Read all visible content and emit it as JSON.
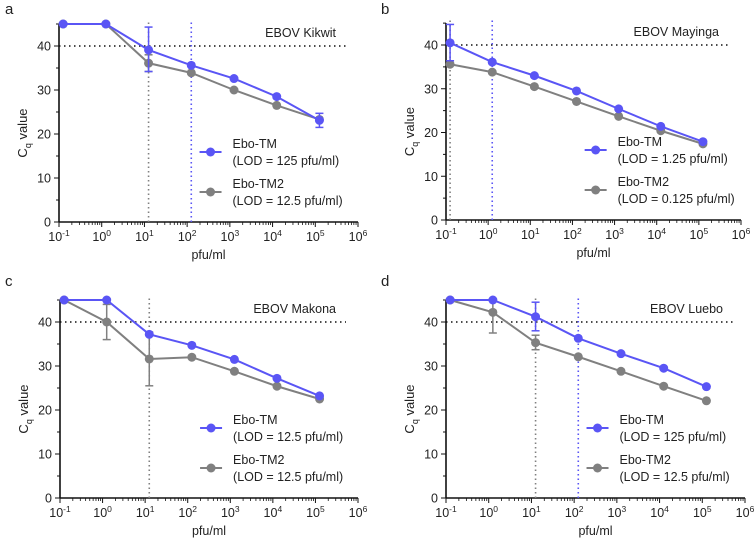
{
  "colors": {
    "tm": "#5a55f5",
    "tm2": "#808080",
    "axis": "#111111"
  },
  "chart_data": [
    {
      "type": "line",
      "panel_label": "a",
      "title": "EBOV Kikwit",
      "xlabel": "pfu/ml",
      "ylabel": "C",
      "ylabel_sub": "q",
      "ylabel_rest": " value",
      "xscale": "log",
      "xlim": [
        0.1,
        1000000
      ],
      "ylim": [
        0,
        45
      ],
      "xticks": [
        "10",
        "10",
        "10",
        "10",
        "10",
        "10",
        "10",
        "10"
      ],
      "xtick_exps": [
        "-1",
        "0",
        "1",
        "2",
        "3",
        "4",
        "5",
        "6"
      ],
      "yticks": [
        "0",
        "10",
        "20",
        "30",
        "40"
      ],
      "threshold": 40,
      "x": [
        0.125,
        1.25,
        12.5,
        125,
        1250,
        12500,
        125000
      ],
      "series": [
        {
          "name": "Ebo-TM",
          "lod_label": "(LOD = 125 pfu/ml)",
          "lod": 125,
          "values": [
            45,
            45,
            39.1,
            35.6,
            32.6,
            28.5,
            23.1
          ],
          "errors": [
            null,
            null,
            [
              34.2,
              44.3
            ],
            null,
            null,
            null,
            [
              21.5,
              24.7
            ]
          ]
        },
        {
          "name": "Ebo-TM2",
          "lod_label": "(LOD = 12.5 pfu/ml)",
          "lod": 12.5,
          "values": [
            45,
            45,
            36.1,
            33.9,
            30.0,
            26.5,
            23.3
          ],
          "errors": [
            null,
            null,
            [
              34.2,
              38
            ],
            null,
            null,
            null,
            null
          ]
        }
      ]
    },
    {
      "type": "line",
      "panel_label": "b",
      "title": "EBOV Mayinga",
      "xlabel": "pfu/ml",
      "ylabel": "C",
      "ylabel_sub": "q",
      "ylabel_rest": " value",
      "xscale": "log",
      "xlim": [
        0.1,
        1000000
      ],
      "ylim": [
        0,
        45
      ],
      "xticks": [
        "10",
        "10",
        "10",
        "10",
        "10",
        "10",
        "10",
        "10"
      ],
      "xtick_exps": [
        "-1",
        "0",
        "1",
        "2",
        "3",
        "4",
        "5",
        "6"
      ],
      "yticks": [
        "0",
        "10",
        "20",
        "30",
        "40"
      ],
      "threshold": 40,
      "x": [
        0.125,
        1.25,
        12.5,
        125,
        1250,
        12500,
        125000
      ],
      "series": [
        {
          "name": "Ebo-TM",
          "lod_label": "(LOD = 1.25 pfu/ml)",
          "lod": 1.25,
          "values": [
            40.5,
            36.1,
            33.0,
            29.5,
            25.4,
            21.4,
            17.9
          ],
          "errors": [
            [
              36.4,
              44.7
            ],
            null,
            null,
            null,
            null,
            null,
            null
          ]
        },
        {
          "name": "Ebo-TM2",
          "lod_label": "(LOD = 0.125 pfu/ml)",
          "lod": 0.125,
          "values": [
            35.6,
            33.8,
            30.5,
            27.1,
            23.7,
            20.4,
            17.4
          ],
          "errors": [
            null,
            null,
            null,
            null,
            null,
            null,
            null
          ]
        }
      ]
    },
    {
      "type": "line",
      "panel_label": "c",
      "title": "EBOV Makona",
      "xlabel": "pfu/ml",
      "ylabel": "C",
      "ylabel_sub": "q",
      "ylabel_rest": " value",
      "xscale": "log",
      "xlim": [
        0.1,
        1000000
      ],
      "ylim": [
        0,
        45
      ],
      "xticks": [
        "10",
        "10",
        "10",
        "10",
        "10",
        "10",
        "10",
        "10"
      ],
      "xtick_exps": [
        "-1",
        "0",
        "1",
        "2",
        "3",
        "4",
        "5",
        "6"
      ],
      "yticks": [
        "0",
        "10",
        "20",
        "30",
        "40"
      ],
      "threshold": 40,
      "x": [
        0.125,
        1.25,
        12.5,
        125,
        1250,
        12500,
        125000
      ],
      "series": [
        {
          "name": "Ebo-TM",
          "lod_label": "(LOD = 12.5 pfu/ml)",
          "lod": 12.5,
          "values": [
            45,
            45,
            37.2,
            34.7,
            31.5,
            27.2,
            23.2
          ],
          "errors": [
            null,
            null,
            null,
            null,
            null,
            null,
            null
          ]
        },
        {
          "name": "Ebo-TM2",
          "lod_label": "(LOD = 12.5 pfu/ml)",
          "lod": 12.5,
          "values": [
            45,
            40.0,
            31.6,
            32.0,
            28.8,
            25.4,
            22.5
          ],
          "errors": [
            null,
            [
              36,
              44
            ],
            [
              25.5,
              37.7
            ],
            null,
            null,
            null,
            null
          ]
        }
      ]
    },
    {
      "type": "line",
      "panel_label": "d",
      "title": "EBOV Luebo",
      "xlabel": "pfu/ml",
      "ylabel": "C",
      "ylabel_sub": "q",
      "ylabel_rest": " value",
      "xscale": "log",
      "xlim": [
        0.1,
        1000000
      ],
      "ylim": [
        0,
        45
      ],
      "xticks": [
        "10",
        "10",
        "10",
        "10",
        "10",
        "10",
        "10",
        "10"
      ],
      "xtick_exps": [
        "-1",
        "0",
        "1",
        "2",
        "3",
        "4",
        "5",
        "6"
      ],
      "yticks": [
        "0",
        "10",
        "20",
        "30",
        "40"
      ],
      "threshold": 40,
      "x": [
        0.125,
        1.25,
        12.5,
        125,
        1250,
        12500,
        125000
      ],
      "series": [
        {
          "name": "Ebo-TM",
          "lod_label": "(LOD = 125 pfu/ml)",
          "lod": 125,
          "values": [
            45,
            45,
            41.2,
            36.3,
            32.8,
            29.5,
            25.3
          ],
          "errors": [
            null,
            null,
            [
              38,
              44.5
            ],
            null,
            null,
            null,
            null
          ]
        },
        {
          "name": "Ebo-TM2",
          "lod_label": "(LOD = 12.5 pfu/ml)",
          "lod": 12.5,
          "values": [
            45,
            42.2,
            35.3,
            32.1,
            28.8,
            25.4,
            22.1
          ],
          "errors": [
            null,
            [
              37.5,
              45
            ],
            [
              33.7,
              37
            ],
            null,
            null,
            null,
            null
          ]
        }
      ]
    }
  ]
}
